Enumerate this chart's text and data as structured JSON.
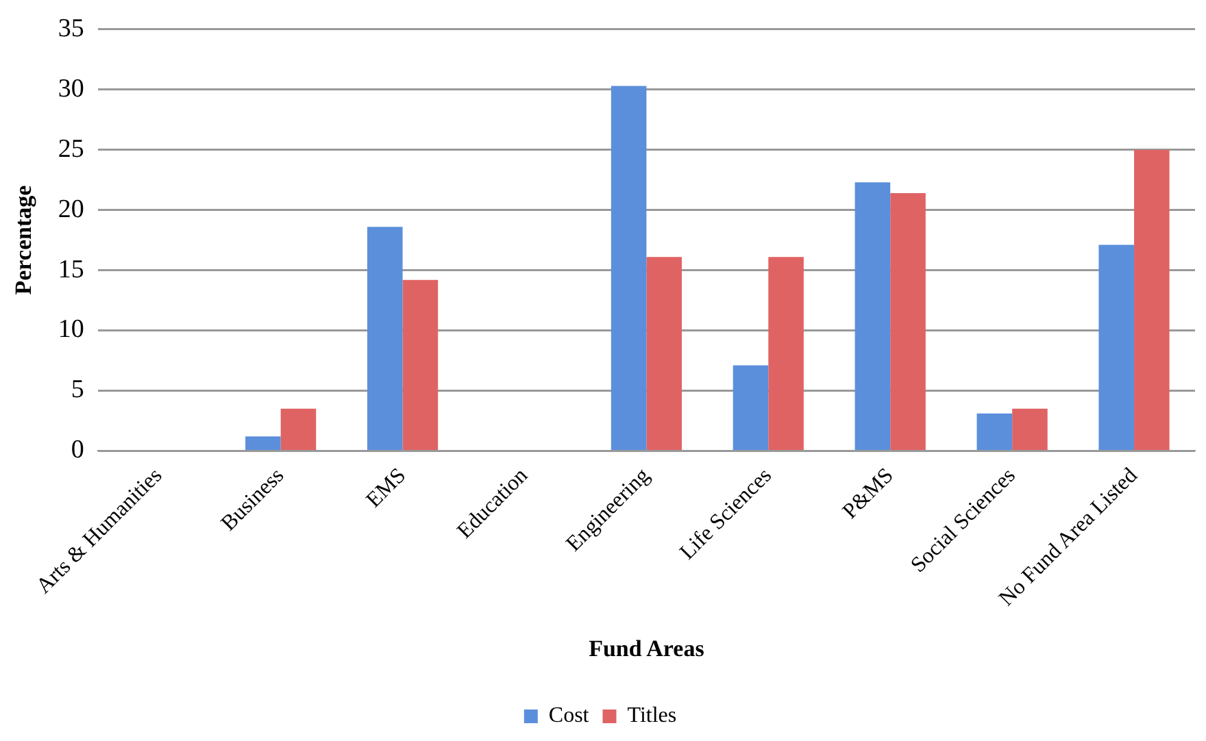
{
  "chart_data": {
    "type": "bar",
    "xlabel": "Fund Areas",
    "ylabel": "Percentage",
    "categories": [
      "Arts & Humanities",
      "Business",
      "EMS",
      "Education",
      "Engineering",
      "Life Sciences",
      "P&MS",
      "Social Sciences",
      "No Fund Area Listed"
    ],
    "series": [
      {
        "name": "Cost",
        "color": "#5b8fdb",
        "values": [
          0,
          1.2,
          18.6,
          0,
          30.3,
          7.1,
          22.3,
          3.1,
          17.1
        ]
      },
      {
        "name": "Titles",
        "color": "#e06363",
        "values": [
          0,
          3.5,
          14.2,
          0,
          16.1,
          16.1,
          21.4,
          3.5,
          25.0
        ]
      }
    ],
    "ylim": [
      0,
      35
    ],
    "yticks": [
      0,
      5,
      10,
      15,
      20,
      25,
      30,
      35
    ],
    "grid": "y",
    "legend": "bottom"
  }
}
